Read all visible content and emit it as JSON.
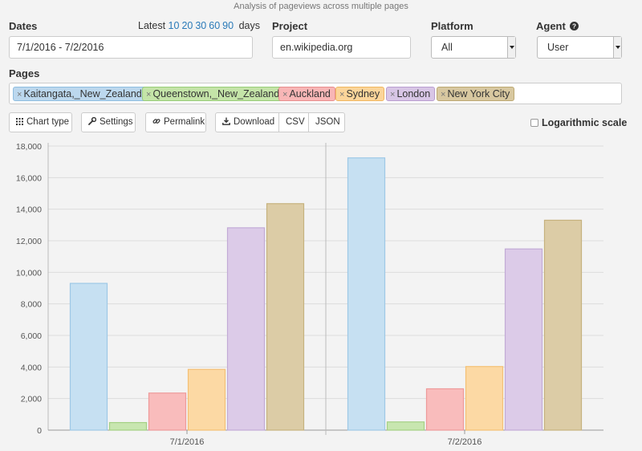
{
  "page": {
    "note": "Analysis of pageviews across multiple pages"
  },
  "dates": {
    "label": "Dates",
    "latest_label": "Latest",
    "latest_options": [
      "10",
      "20",
      "30",
      "60",
      "90"
    ],
    "days_label": "days",
    "value": "7/1/2016 - 7/2/2016"
  },
  "project": {
    "label": "Project",
    "value": "en.wikipedia.org"
  },
  "platform": {
    "label": "Platform",
    "value": "All"
  },
  "agent": {
    "label": "Agent",
    "help_icon": "question-circle-icon",
    "value": "User"
  },
  "pages": {
    "label": "Pages",
    "tags": [
      {
        "name": "Kaitangata,_New_Zealand",
        "color": "#bcd8ee",
        "border": "#8fbde0"
      },
      {
        "name": "Queenstown,_New_Zealand",
        "color": "#c4e4a8",
        "border": "#98cc78"
      },
      {
        "name": "Auckland",
        "color": "#f8b6b6",
        "border": "#e88e8e"
      },
      {
        "name": "Sydney",
        "color": "#fbd59a",
        "border": "#f0b660"
      },
      {
        "name": "London",
        "color": "#d8c6e6",
        "border": "#b99ed0"
      },
      {
        "name": "New York City",
        "color": "#d8c8a0",
        "border": "#bca872"
      }
    ]
  },
  "toolbar": {
    "chart_type_label": "Chart type",
    "settings_label": "Settings",
    "permalink_label": "Permalink",
    "download_label": "Download",
    "csv_label": "CSV",
    "json_label": "JSON",
    "log_scale_label": "Logarithmic scale"
  },
  "chart_data": {
    "type": "bar",
    "categories": [
      "7/1/2016",
      "7/2/2016"
    ],
    "series": [
      {
        "name": "Kaitangata,_New_Zealand",
        "values": [
          9300,
          17250
        ],
        "fill": "#c6e0f2",
        "stroke": "#9ec8e6"
      },
      {
        "name": "Queenstown,_New_Zealand",
        "values": [
          480,
          520
        ],
        "fill": "#c8e6b0",
        "stroke": "#a4d184"
      },
      {
        "name": "Auckland",
        "values": [
          2350,
          2620
        ],
        "fill": "#f9bcbc",
        "stroke": "#ee9a9a"
      },
      {
        "name": "Sydney",
        "values": [
          3850,
          4030
        ],
        "fill": "#fcd9a4",
        "stroke": "#f4c074"
      },
      {
        "name": "London",
        "values": [
          12820,
          11480
        ],
        "fill": "#dccbe8",
        "stroke": "#c2aad6"
      },
      {
        "name": "New York City",
        "values": [
          14350,
          13300
        ],
        "fill": "#dccca6",
        "stroke": "#c6b27e"
      }
    ],
    "ylim": [
      0,
      18000
    ],
    "yticks": [
      "0",
      "2,000",
      "4,000",
      "6,000",
      "8,000",
      "10,000",
      "12,000",
      "14,000",
      "16,000",
      "18,000"
    ],
    "grid": true,
    "log_scale": false
  }
}
